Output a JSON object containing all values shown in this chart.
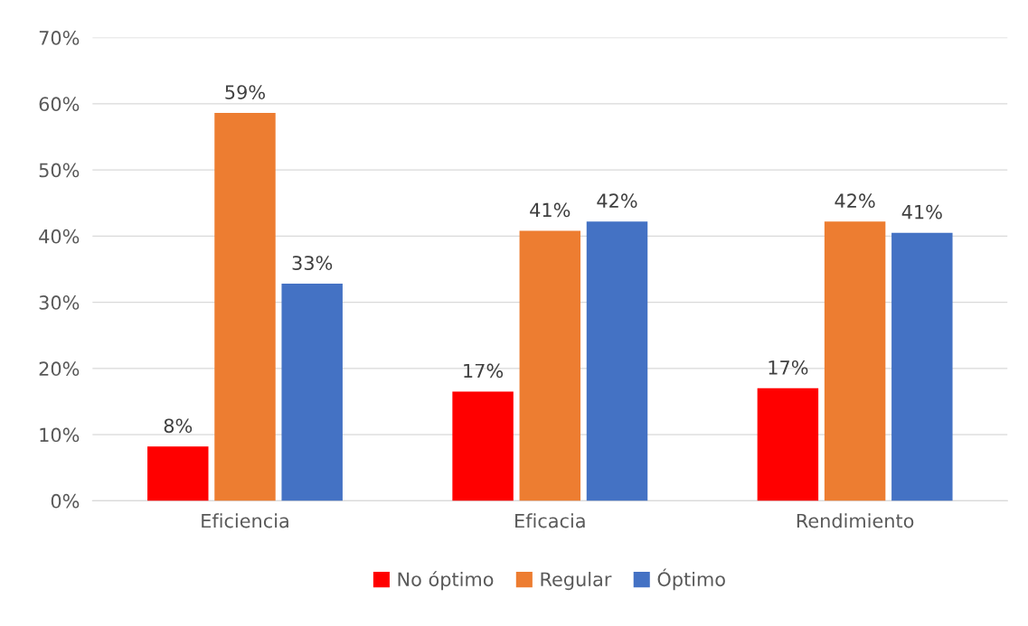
{
  "chart_data": {
    "type": "bar",
    "categories": [
      "Eficiencia",
      "Eficacia",
      "Rendimiento"
    ],
    "series": [
      {
        "name": "No óptimo",
        "color": "#ff0000",
        "values": [
          8.2,
          16.5,
          17.0
        ],
        "value_labels": [
          "8%",
          "17%",
          "17%"
        ]
      },
      {
        "name": "Regular",
        "color": "#ed7d31",
        "values": [
          58.6,
          40.8,
          42.2
        ],
        "value_labels": [
          "59%",
          "41%",
          "42%"
        ]
      },
      {
        "name": "Óptimo",
        "color": "#4472c4",
        "values": [
          32.8,
          42.2,
          40.5
        ],
        "value_labels": [
          "33%",
          "42%",
          "41%"
        ]
      }
    ],
    "ylim": [
      0,
      70
    ],
    "yticks": [
      {
        "value": 0,
        "label": "0%"
      },
      {
        "value": 10,
        "label": "10%"
      },
      {
        "value": 20,
        "label": "20%"
      },
      {
        "value": 30,
        "label": "30%"
      },
      {
        "value": 40,
        "label": "40%"
      },
      {
        "value": 50,
        "label": "50%"
      },
      {
        "value": 60,
        "label": "60%"
      },
      {
        "value": 70,
        "label": "70%"
      }
    ],
    "grid": "y",
    "legend": "bottom"
  }
}
